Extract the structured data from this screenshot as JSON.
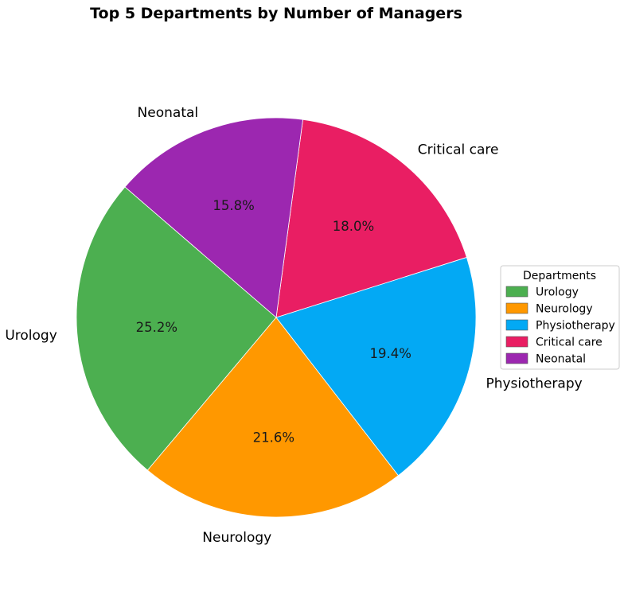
{
  "chart_data": {
    "type": "pie",
    "title": "Top 5 Departments by Number of Managers",
    "slices": [
      {
        "label": "Urology",
        "percent": 25.2,
        "percent_label": "25.2%",
        "color": "#4caf50"
      },
      {
        "label": "Neurology",
        "percent": 21.6,
        "percent_label": "21.6%",
        "color": "#ff9800"
      },
      {
        "label": "Physiotherapy",
        "percent": 19.4,
        "percent_label": "19.4%",
        "color": "#03a9f4"
      },
      {
        "label": "Critical care",
        "percent": 18.0,
        "percent_label": "18.0%",
        "color": "#e91e63"
      },
      {
        "label": "Neonatal",
        "percent": 15.8,
        "percent_label": "15.8%",
        "color": "#9c27b0"
      }
    ],
    "legend": {
      "title": "Departments",
      "placement": "center-right"
    }
  }
}
